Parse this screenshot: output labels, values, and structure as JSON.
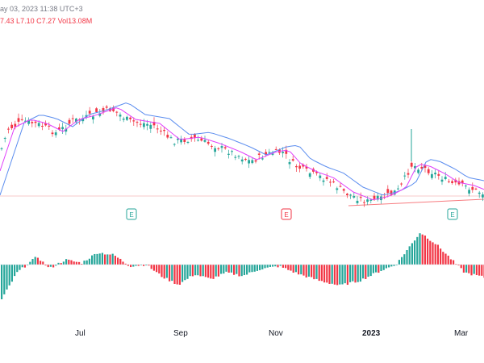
{
  "header": {
    "datetime_text": "ay 03, 2023 11:38 UTC+3",
    "ohlc": [
      {
        "label": "",
        "value": "7.43"
      },
      {
        "label": "L",
        "value": "7.10"
      },
      {
        "label": "C",
        "value": "7.27"
      },
      {
        "label": "Vol",
        "value": "13.08M"
      }
    ]
  },
  "colors": {
    "up": "#26a69a",
    "down": "#f23645",
    "ma_fast": "#e040fb",
    "ma_slow": "#5b8def",
    "trend": "#f77c80",
    "marker": "#26a69a"
  },
  "markers": [
    {
      "label": "E",
      "color": "#26a69a"
    },
    {
      "label": "E",
      "color": "#f23645"
    },
    {
      "label": "E",
      "color": "#26a69a"
    }
  ],
  "x_axis": {
    "labels": [
      "Jul",
      "Sep",
      "Nov",
      "2023",
      "Mar"
    ]
  }
}
